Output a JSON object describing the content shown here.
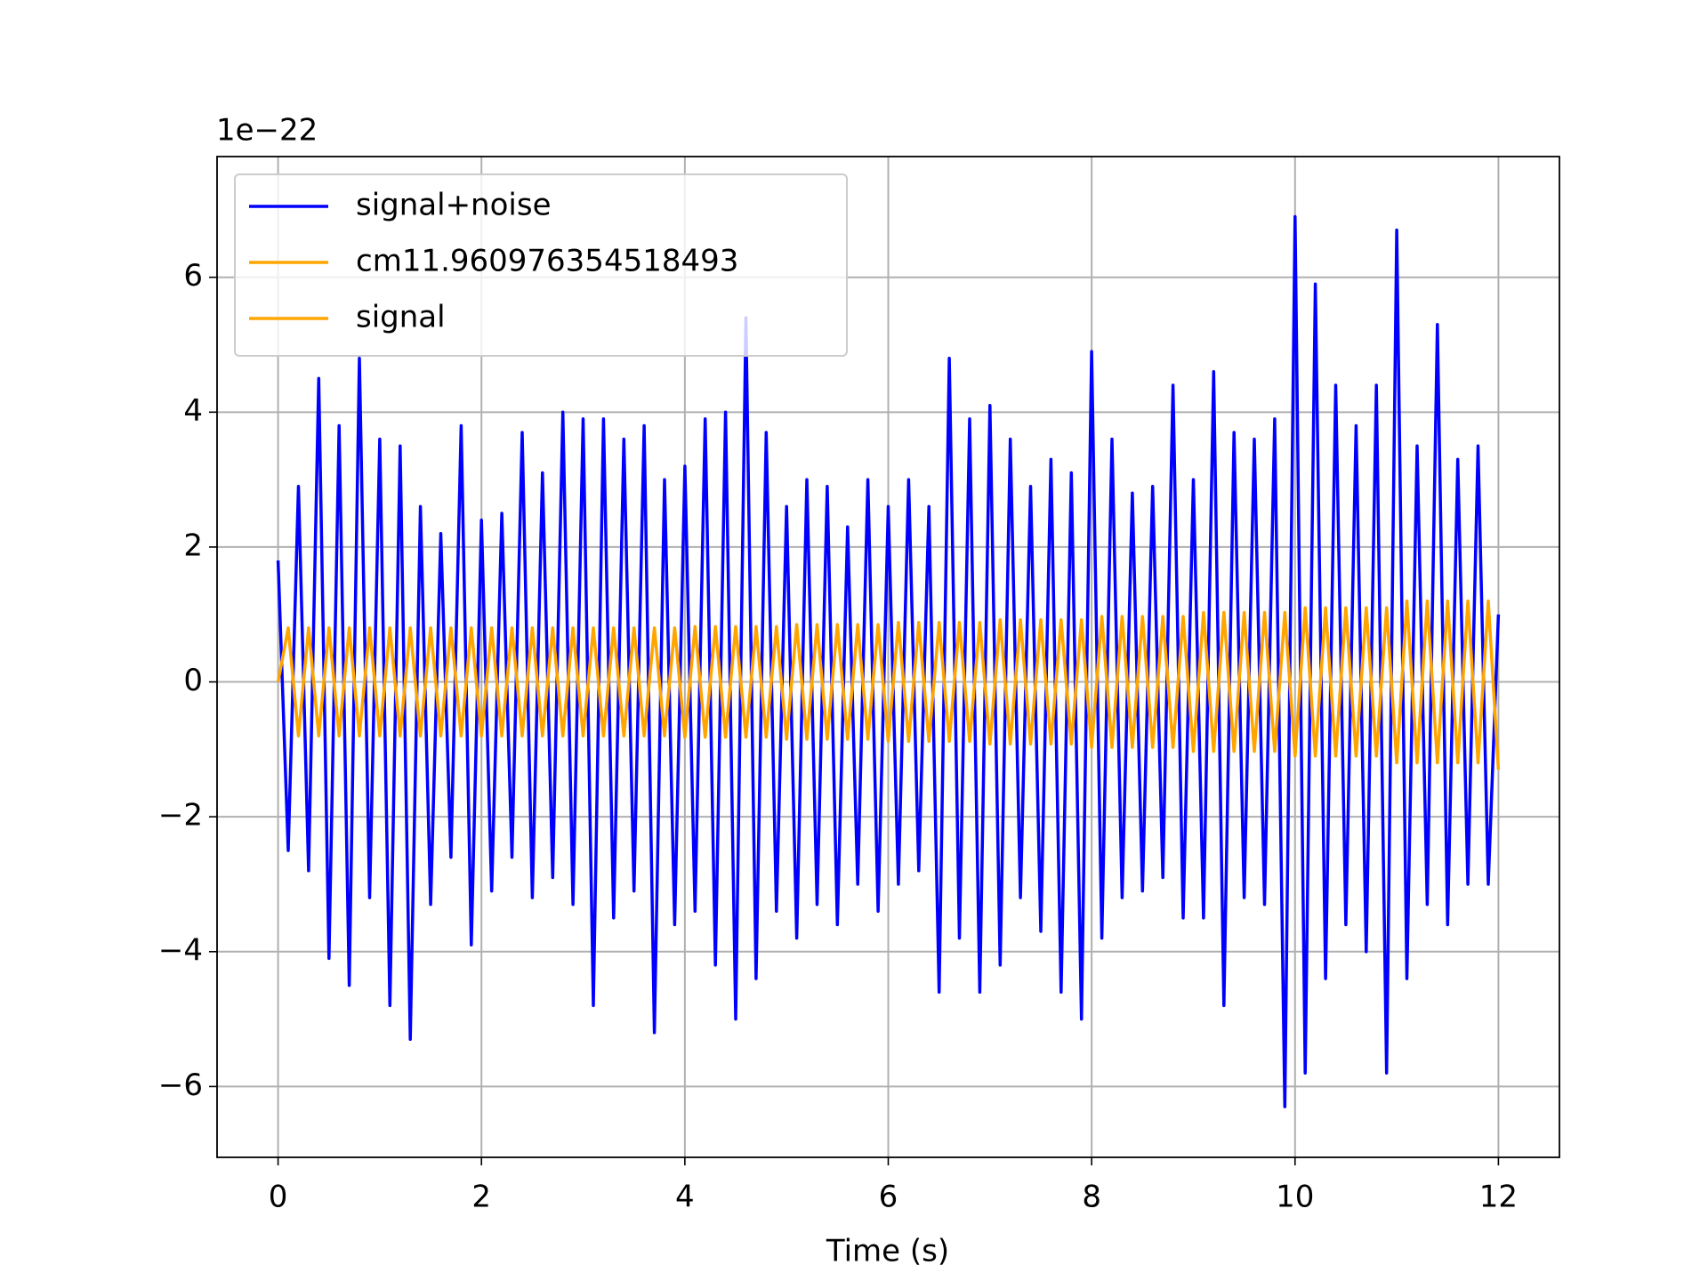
{
  "chart_data": {
    "type": "line",
    "offset_text": "1e−22",
    "xlabel": "Time (s)",
    "x": [
      0,
      0.1,
      0.2,
      0.3,
      0.4,
      0.5,
      0.6,
      0.7,
      0.8,
      0.9,
      1,
      1.1,
      1.2,
      1.3,
      1.4,
      1.5,
      1.6,
      1.7,
      1.8,
      1.9,
      2,
      2.1,
      2.2,
      2.3,
      2.4,
      2.5,
      2.6,
      2.7,
      2.8,
      2.9,
      3,
      3.1,
      3.2,
      3.3,
      3.4,
      3.5,
      3.6,
      3.7,
      3.8,
      3.9,
      4,
      4.1,
      4.2,
      4.3,
      4.4,
      4.5,
      4.6,
      4.7,
      4.8,
      4.9,
      5,
      5.1,
      5.2,
      5.3,
      5.4,
      5.5,
      5.6,
      5.7,
      5.8,
      5.9,
      6,
      6.1,
      6.2,
      6.3,
      6.4,
      6.5,
      6.6,
      6.7,
      6.8,
      6.9,
      7,
      7.1,
      7.2,
      7.3,
      7.4,
      7.5,
      7.6,
      7.7,
      7.8,
      7.9,
      8,
      8.1,
      8.2,
      8.3,
      8.4,
      8.5,
      8.6,
      8.7,
      8.8,
      8.9,
      9,
      9.1,
      9.2,
      9.3,
      9.4,
      9.5,
      9.6,
      9.7,
      9.8,
      9.9,
      10,
      10.1,
      10.2,
      10.3,
      10.4,
      10.5,
      10.6,
      10.7,
      10.8,
      10.9,
      11,
      11.1,
      11.2,
      11.3,
      11.4,
      11.5,
      11.6,
      11.7,
      11.8,
      11.9,
      12
    ],
    "series": [
      {
        "name": "signal+noise",
        "color": "#0000ff",
        "values": [
          1.8,
          -2.5,
          2.9,
          -2.8,
          4.5,
          -4.1,
          3.8,
          -4.5,
          4.8,
          -3.2,
          3.6,
          -4.8,
          3.5,
          -5.3,
          2.6,
          -3.3,
          2.2,
          -2.6,
          3.8,
          -3.9,
          2.4,
          -3.1,
          2.5,
          -2.6,
          3.7,
          -3.2,
          3.1,
          -2.9,
          4.0,
          -3.3,
          3.9,
          -4.8,
          3.9,
          -3.5,
          3.6,
          -3.1,
          3.8,
          -5.2,
          3.0,
          -3.6,
          3.2,
          -3.4,
          3.9,
          -4.2,
          4.0,
          -5.0,
          5.4,
          -4.4,
          3.7,
          -3.4,
          2.6,
          -3.8,
          3.0,
          -3.3,
          2.9,
          -3.6,
          2.3,
          -3.0,
          3.0,
          -3.4,
          2.6,
          -3.0,
          3.0,
          -2.8,
          2.6,
          -4.6,
          4.8,
          -3.8,
          3.9,
          -4.6,
          4.1,
          -4.2,
          3.6,
          -3.2,
          2.9,
          -3.7,
          3.3,
          -4.6,
          3.1,
          -5.0,
          4.9,
          -3.8,
          3.6,
          -3.2,
          2.8,
          -3.1,
          2.9,
          -2.9,
          4.4,
          -3.5,
          3.0,
          -3.5,
          4.6,
          -4.8,
          3.7,
          -3.2,
          3.6,
          -3.3,
          3.9,
          -6.3,
          6.9,
          -5.8,
          5.9,
          -4.4,
          4.4,
          -3.6,
          3.8,
          -4.0,
          4.4,
          -5.8,
          6.7,
          -4.4,
          3.5,
          -3.3,
          5.3,
          -3.6,
          3.3,
          -3.0,
          3.5,
          -3.0,
          1.0
        ]
      },
      {
        "name": "cm11.960976354518493",
        "color": "#ffa500",
        "values": [
          null,
          null,
          null,
          null,
          null,
          null,
          null,
          null,
          null,
          null,
          null,
          null,
          null,
          null,
          null,
          null,
          null,
          null,
          null,
          null,
          null,
          null,
          null,
          null,
          null,
          null,
          null,
          null,
          null,
          null,
          null,
          null,
          null,
          null,
          null,
          null,
          null,
          null,
          null,
          null,
          null,
          null,
          null,
          null,
          null,
          null,
          null,
          null,
          null,
          null,
          null,
          null,
          null,
          null,
          null,
          null,
          null,
          null,
          null,
          null,
          null,
          null,
          null,
          null,
          null,
          null,
          null,
          null,
          null,
          null,
          null,
          null,
          null,
          null,
          null,
          null,
          null,
          null,
          null,
          null,
          null,
          null,
          null,
          null,
          null,
          null,
          null,
          null,
          null,
          null,
          null,
          null,
          null,
          null,
          null,
          null,
          null,
          null,
          null,
          null,
          null,
          null,
          null,
          null,
          null,
          null,
          null,
          null,
          null,
          null,
          null,
          null,
          null,
          null,
          null,
          null,
          null,
          null,
          null,
          null,
          null
        ]
      },
      {
        "name": "signal",
        "color": "#ffa500",
        "values": [
          0,
          0.8,
          -0.8,
          0.8,
          -0.8,
          0.8,
          -0.8,
          0.8,
          -0.8,
          0.8,
          -0.8,
          0.8,
          -0.8,
          0.8,
          -0.8,
          0.8,
          -0.8,
          0.8,
          -0.8,
          0.8,
          -0.8,
          0.8,
          -0.8,
          0.8,
          -0.8,
          0.8,
          -0.8,
          0.8,
          -0.8,
          0.8,
          -0.8,
          0.8,
          -0.8,
          0.8,
          -0.8,
          0.8,
          -0.8,
          0.8,
          -0.8,
          0.8,
          -0.82,
          0.82,
          -0.82,
          0.82,
          -0.82,
          0.82,
          -0.82,
          0.82,
          -0.82,
          0.82,
          -0.85,
          0.85,
          -0.85,
          0.85,
          -0.85,
          0.85,
          -0.85,
          0.85,
          -0.85,
          0.85,
          -0.88,
          0.88,
          -0.88,
          0.88,
          -0.88,
          0.88,
          -0.88,
          0.88,
          -0.88,
          0.88,
          -0.92,
          0.92,
          -0.92,
          0.92,
          -0.92,
          0.92,
          -0.92,
          0.92,
          -0.92,
          0.92,
          -0.97,
          0.97,
          -0.97,
          0.97,
          -0.97,
          0.97,
          -0.97,
          0.97,
          -0.97,
          0.97,
          -1.03,
          1.03,
          -1.03,
          1.03,
          -1.03,
          1.03,
          -1.03,
          1.03,
          -1.03,
          1.03,
          -1.1,
          1.1,
          -1.1,
          1.1,
          -1.1,
          1.1,
          -1.1,
          1.1,
          -1.1,
          1.1,
          -1.2,
          1.2,
          -1.2,
          1.2,
          -1.2,
          1.2,
          -1.2,
          1.2,
          -1.2,
          1.2,
          -1.3
        ]
      }
    ],
    "xlim": [
      -0.6,
      12.6
    ],
    "xticks": [
      0,
      2,
      4,
      6,
      8,
      10,
      12
    ],
    "ylim": [
      -7.05,
      7.79
    ],
    "yticks": [
      {
        "value": -6,
        "label": "−6"
      },
      {
        "value": -4,
        "label": "−4"
      },
      {
        "value": -2,
        "label": "−2"
      },
      0,
      2,
      4,
      6
    ],
    "grid": true,
    "legend": "upper left"
  }
}
